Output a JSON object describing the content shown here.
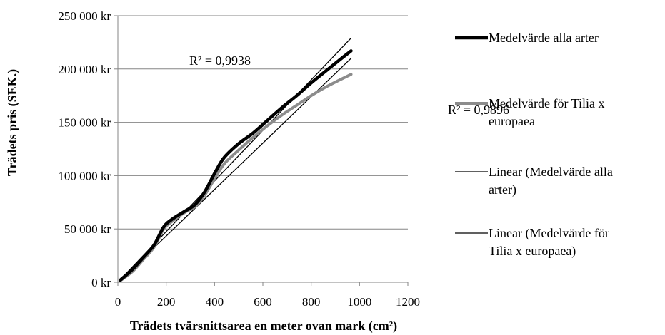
{
  "chart_data": {
    "type": "line",
    "title": "",
    "xlabel": "Trädets tvärsnittsarea en meter ovan mark (cm²)",
    "ylabel": "Trädets pris (SEK.)",
    "xlim": [
      0,
      1200
    ],
    "ylim": [
      0,
      250000
    ],
    "x_ticks": [
      "0",
      "200",
      "400",
      "600",
      "800",
      "1000",
      "1200"
    ],
    "x_tick_values": [
      0,
      200,
      400,
      600,
      800,
      1000,
      1200
    ],
    "y_ticks": [
      "0 kr",
      "50 000 kr",
      "100 000 kr",
      "150 000 kr",
      "200 000 kr",
      "250 000 kr"
    ],
    "y_tick_values": [
      0,
      50000,
      100000,
      150000,
      200000,
      250000
    ],
    "grid": "horizontal",
    "legend_position": "right",
    "series": [
      {
        "name": "Medelvärde alla arter",
        "kind": "data",
        "color": "#000000",
        "x": [
          10,
          60,
          100,
          150,
          190,
          230,
          280,
          320,
          360,
          400,
          440,
          500,
          560,
          620,
          680,
          740,
          800,
          860,
          920,
          965
        ],
        "y": [
          2000,
          12000,
          22000,
          35000,
          52000,
          60000,
          67000,
          73000,
          85000,
          102000,
          117000,
          130000,
          140000,
          152000,
          164000,
          175000,
          187000,
          198000,
          209000,
          217000
        ]
      },
      {
        "name": "Medelvärde för Tilia x europaea",
        "kind": "data",
        "color": "#8c8c8c",
        "x": [
          10,
          60,
          100,
          150,
          190,
          230,
          280,
          320,
          360,
          400,
          440,
          500,
          560,
          620,
          680,
          740,
          800,
          860,
          920,
          965
        ],
        "y": [
          1500,
          10000,
          20000,
          33000,
          50000,
          58000,
          66000,
          71000,
          82000,
          97000,
          111000,
          124000,
          136000,
          147000,
          157000,
          166000,
          175000,
          183000,
          190000,
          195000
        ]
      },
      {
        "name": "Linear (Medelvärde alla arter)",
        "kind": "trend",
        "color": "#000000",
        "x": [
          10,
          965
        ],
        "y": [
          2500,
          229000
        ]
      },
      {
        "name": "Linear (Medelvärde för Tilia x europaea)",
        "kind": "trend",
        "color": "#000000",
        "x": [
          10,
          965
        ],
        "y": [
          2000,
          210000
        ]
      }
    ],
    "annotations": [
      {
        "text": "R² = 0,9938"
      },
      {
        "text": "R² = 0,9896"
      }
    ],
    "legend_lines": [
      [
        "Medelvärde alla arter"
      ],
      [
        "Medelvärde för Tilia x",
        "europaea"
      ],
      [
        "Linear (Medelvärde alla",
        "arter)"
      ],
      [
        "Linear (Medelvärde för",
        "Tilia x europaea)"
      ]
    ]
  }
}
